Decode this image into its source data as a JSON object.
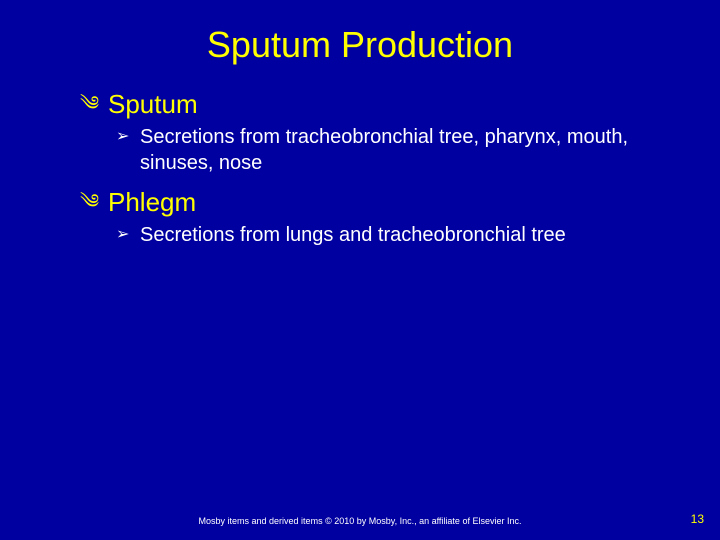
{
  "slide": {
    "background_color": "#0000a0",
    "title_color": "#ffff00",
    "l1_color": "#ffff00",
    "l2_color": "#ffffff",
    "title": "Sputum Production",
    "title_fontsize": 36,
    "l1_fontsize": 26,
    "l2_fontsize": 20,
    "l1_bullet": "༄",
    "l2_bullet": "➢",
    "items": {
      "a": {
        "label": "Sputum",
        "subs": {
          "a": "Secretions from tracheobronchial tree, pharynx, mouth, sinuses, nose"
        }
      },
      "b": {
        "label": "Phlegm",
        "subs": {
          "a": "Secretions from lungs and tracheobronchial tree"
        }
      }
    },
    "copyright": "Mosby items and derived items © 2010 by Mosby, Inc., an affiliate of Elsevier Inc.",
    "page_number": "13"
  }
}
